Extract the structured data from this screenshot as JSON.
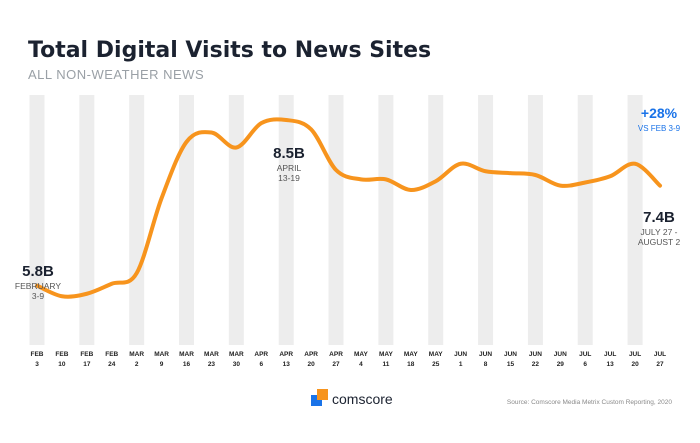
{
  "header": {
    "title": "Total Digital Visits to News Sites",
    "subtitle": "ALL NON-WEATHER NEWS"
  },
  "chart_data": {
    "type": "line",
    "x_labels": [
      [
        "FEB",
        "3"
      ],
      [
        "FEB",
        "10"
      ],
      [
        "FEB",
        "17"
      ],
      [
        "FEB",
        "24"
      ],
      [
        "MAR",
        "2"
      ],
      [
        "MAR",
        "9"
      ],
      [
        "MAR",
        "16"
      ],
      [
        "MAR",
        "23"
      ],
      [
        "MAR",
        "30"
      ],
      [
        "APR",
        "6"
      ],
      [
        "APR",
        "13"
      ],
      [
        "APR",
        "20"
      ],
      [
        "APR",
        "27"
      ],
      [
        "MAY",
        "4"
      ],
      [
        "MAY",
        "11"
      ],
      [
        "MAY",
        "18"
      ],
      [
        "MAY",
        "25"
      ],
      [
        "JUN",
        "1"
      ],
      [
        "JUN",
        "8"
      ],
      [
        "JUN",
        "15"
      ],
      [
        "JUN",
        "22"
      ],
      [
        "JUN",
        "29"
      ],
      [
        "JUL",
        "6"
      ],
      [
        "JUL",
        "13"
      ],
      [
        "JUL",
        "20"
      ],
      [
        "JUL",
        "27"
      ]
    ],
    "series": [
      {
        "values": [
          5.85,
          5.68,
          5.72,
          5.88,
          6.05,
          7.25,
          8.15,
          8.3,
          8.06,
          8.45,
          8.5,
          8.35,
          7.7,
          7.55,
          7.55,
          7.38,
          7.52,
          7.8,
          7.68,
          7.65,
          7.62,
          7.45,
          7.5,
          7.6,
          7.8,
          7.45
        ],
        "color": "#f7941d"
      }
    ],
    "ylim": [
      4.9,
      8.9
    ],
    "grid": "alternating vertical bands",
    "annotations": [
      {
        "value": "5.8B",
        "lines": [
          "FEBRUARY",
          "3-9"
        ],
        "index": 0
      },
      {
        "value": "8.5B",
        "lines": [
          "APRIL",
          "13-19"
        ],
        "index": 10
      },
      {
        "value": "+28%",
        "lines": [
          "VS FEB 3-9"
        ],
        "index": 25,
        "color": "#1a73e8"
      },
      {
        "value": "7.4B",
        "lines": [
          "JULY 27 -",
          "AUGUST 2"
        ],
        "index": 25
      }
    ]
  },
  "footer": {
    "brand": "comscore",
    "source": "Source: Comscore Media Metrix Custom Reporting, 2020"
  }
}
